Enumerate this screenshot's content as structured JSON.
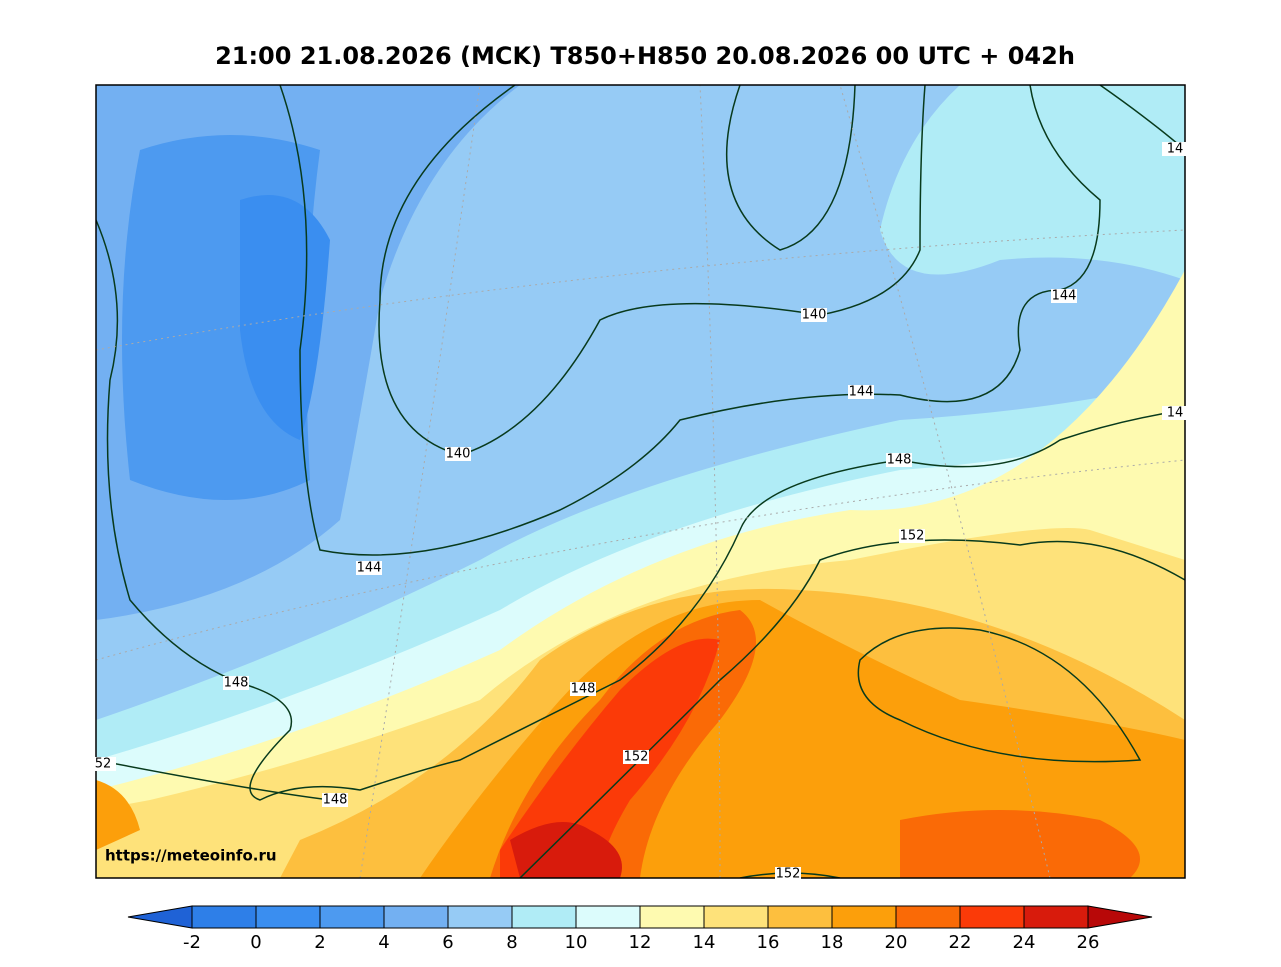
{
  "title": "21:00 21.08.2026 (MCK) T850+H850 20.08.2026 00 UTC + 042h",
  "source": "https://meteoinfo.ru",
  "contour_labels": [
    "140",
    "140",
    "144",
    "144",
    "144",
    "148",
    "148",
    "148",
    "148",
    "152",
    "152",
    "152",
    "52",
    "14",
    "14"
  ],
  "colorbar": {
    "ticks": [
      -2,
      0,
      2,
      4,
      6,
      8,
      10,
      12,
      14,
      16,
      18,
      20,
      22,
      24,
      26
    ],
    "colors": [
      "#2e7fe8",
      "#3a8ef0",
      "#4d9af0",
      "#73b0f2",
      "#96cbf5",
      "#b0ecf6",
      "#dcfcfc",
      "#fefab0",
      "#fee27a",
      "#fdbf3e",
      "#fc9f0b",
      "#fa6a06",
      "#fb3a08",
      "#d81b0c"
    ],
    "under_color": "#1f62d6",
    "over_color": "#b80808"
  }
}
